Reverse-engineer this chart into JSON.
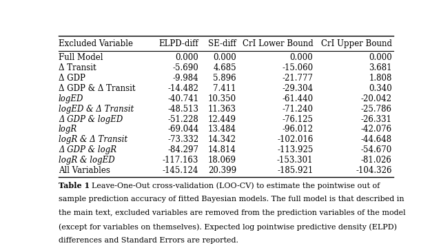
{
  "columns": [
    "Excluded Variable",
    "ELPD-diff",
    "SE-diff",
    "CrI Lower Bound",
    "CrI Upper Bound"
  ],
  "rows": [
    [
      "Full Model",
      "0.000",
      "0.000",
      "0.000",
      "0.000"
    ],
    [
      "Δ Transit",
      "-5.690",
      "4.685",
      "-15.060",
      "3.681"
    ],
    [
      "Δ GDP",
      "-9.984",
      "5.896",
      "-21.777",
      "1.808"
    ],
    [
      "Δ GDP & Δ Transit",
      "-14.482",
      "7.411",
      "-29.304",
      "0.340"
    ],
    [
      "logED",
      "-40.741",
      "10.350",
      "-61.440",
      "-20.042"
    ],
    [
      "logED & Δ Transit",
      "-48.513",
      "11.363",
      "-71.240",
      "-25.786"
    ],
    [
      "Δ GDP & logED",
      "-51.228",
      "12.449",
      "-76.125",
      "-26.331"
    ],
    [
      "logR",
      "-69.044",
      "13.484",
      "-96.012",
      "-42.076"
    ],
    [
      "logR & Δ Transit",
      "-73.332",
      "14.342",
      "-102.016",
      "-44.648"
    ],
    [
      "Δ GDP & logR",
      "-84.297",
      "14.814",
      "-113.925",
      "-54.670"
    ],
    [
      "logR & logED",
      "-117.163",
      "18.069",
      "-153.301",
      "-81.026"
    ],
    [
      "All Variables",
      "-145.124",
      "20.399",
      "-185.921",
      "-104.326"
    ]
  ],
  "italic_rows": [
    4,
    5,
    6,
    7,
    8,
    9,
    10
  ],
  "caption_bold": "Table 1",
  "caption_rest": "  Leave-One-Out cross-validation (LOO-CV) to estimate the pointwise out of sample prediction accuracy of fitted Bayesian models. The full model is that described in the main text, excluded variables are removed from the prediction variables of the model (except for variables on themselves). Expected log pointwise predictive density (ELPD) differences and Standard Errors are reported.",
  "bg_color": "#ffffff",
  "text_color": "#000000",
  "header_fontsize": 8.5,
  "body_fontsize": 8.5,
  "caption_fontsize": 8.0
}
